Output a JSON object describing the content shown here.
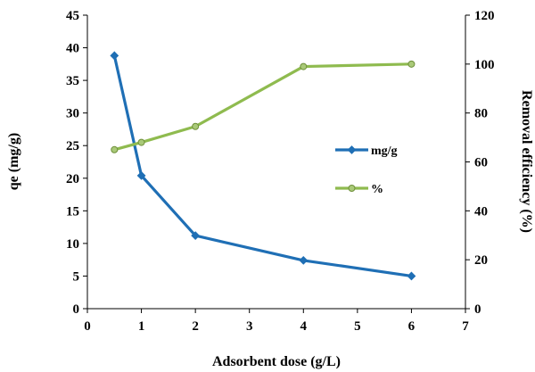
{
  "chart_data": {
    "type": "line",
    "xlabel": "Adsorbent dose (g/L)",
    "ylabel": "qe (mg/g)",
    "y2label": "Removal efficiency (%)",
    "xlim": [
      0,
      7
    ],
    "ylim": [
      0,
      45
    ],
    "y2lim": [
      0,
      120
    ],
    "x_ticks": [
      "0",
      "1",
      "2",
      "3",
      "4",
      "5",
      "6",
      "7"
    ],
    "y_ticks": [
      "0",
      "5",
      "10",
      "15",
      "20",
      "25",
      "30",
      "35",
      "40",
      "45"
    ],
    "y2_ticks": [
      "0",
      "20",
      "40",
      "60",
      "80",
      "100",
      "120"
    ],
    "grid": false,
    "legend_position": "center-right",
    "series": [
      {
        "name": "mg/g",
        "axis": "left",
        "color": "#1f6fb5",
        "marker": "diamond",
        "x": [
          0.5,
          1,
          2,
          4,
          6
        ],
        "y": [
          38.8,
          20.4,
          11.2,
          7.4,
          5.0
        ]
      },
      {
        "name": "%",
        "axis": "right",
        "color": "#8fbb4f",
        "marker": "circle",
        "x": [
          0.5,
          1,
          2,
          4,
          6
        ],
        "y": [
          65,
          68,
          74.5,
          99,
          100
        ]
      }
    ]
  }
}
